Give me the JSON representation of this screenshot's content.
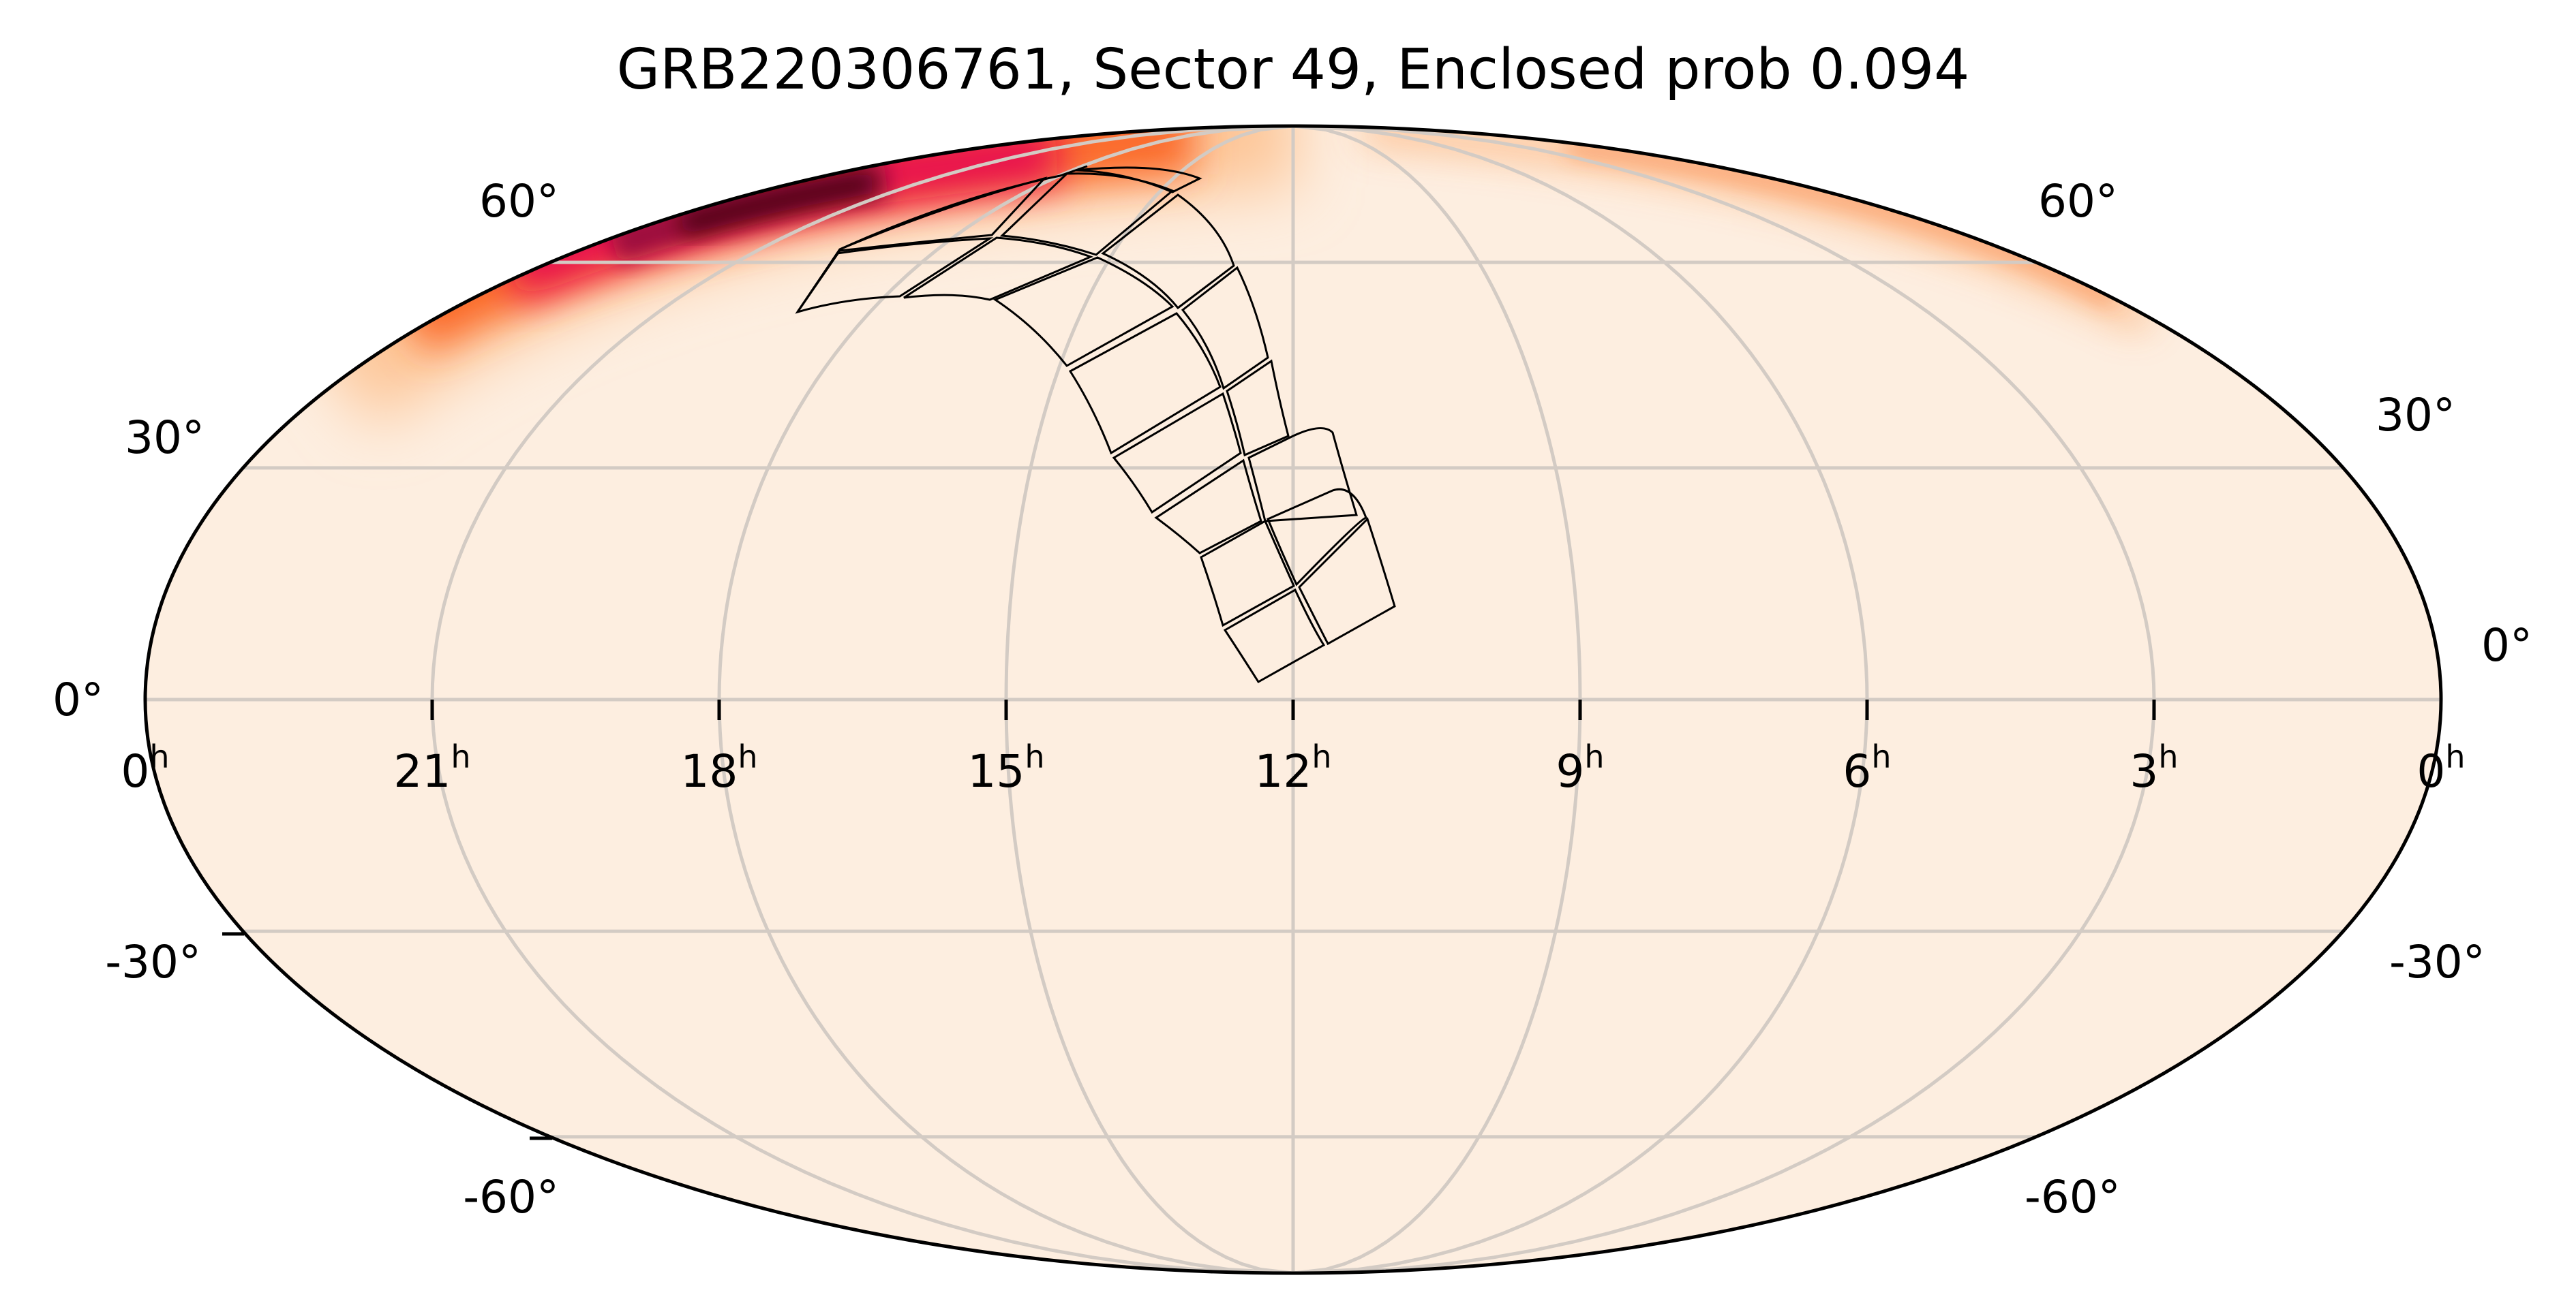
{
  "chart_data": {
    "type": "heatmap",
    "projection": "mollweide",
    "title": "GRB220306761, Sector 49, Enclosed prob 0.094",
    "xlabel": "",
    "ylabel": "",
    "grid": true,
    "ra_tick_labels": [
      "0h",
      "21h",
      "18h",
      "15h",
      "12h",
      "9h",
      "6h",
      "3h",
      "0h"
    ],
    "ra_ticks_hours": [
      24,
      21,
      18,
      15,
      12,
      9,
      6,
      3,
      0
    ],
    "dec_tick_labels": [
      "-60°",
      "-30°",
      "0°",
      "30°",
      "60°"
    ],
    "dec_ticks_deg": [
      -60,
      -30,
      0,
      30,
      60
    ],
    "colormap": "sequential light-peach to dark-red (magma-like, reversed)",
    "background_color": "#fdeee0",
    "probability_hotspot": {
      "description": "elongated arc of high probability near Dec +45 to +75, RA ~16h-21h, peak near RA ~17h Dec ~+65",
      "peak_color": "#4a0010",
      "secondary_faint_band": "near top-right limb, RA ~2h-8h, Dec ~+50 to +75"
    },
    "footprint": {
      "description": "TESS Sector 49 camera/CCD footprint: 4 cameras x 4 CCDs arranged in a strip from Dec ~+80 down to Dec ~+10 around RA ~11-15h",
      "enclosed_probability": 0.094
    }
  },
  "header": {
    "title_text": "GRB220306761, Sector 49, Enclosed prob 0.094"
  },
  "axes": {
    "ra_labels": [
      {
        "main": "0",
        "sup": "h"
      },
      {
        "main": "21",
        "sup": "h"
      },
      {
        "main": "18",
        "sup": "h"
      },
      {
        "main": "15",
        "sup": "h"
      },
      {
        "main": "12",
        "sup": "h"
      },
      {
        "main": "9",
        "sup": "h"
      },
      {
        "main": "6",
        "sup": "h"
      },
      {
        "main": "3",
        "sup": "h"
      },
      {
        "main": "0",
        "sup": "h"
      }
    ],
    "dec_left": [
      "60°",
      "30°",
      "0°",
      "-30°",
      "-60°"
    ],
    "dec_right": [
      "60°",
      "30°",
      "0°",
      "-30°",
      "-60°"
    ]
  },
  "colors": {
    "frame": "#000000",
    "grid": "#d3cbc4",
    "sky_background": "#fdeee0",
    "heat_low": "#fdd0a2",
    "heat_mid": "#fb6a2c",
    "heat_high": "#e8104f",
    "heat_peak": "#4a0010"
  }
}
